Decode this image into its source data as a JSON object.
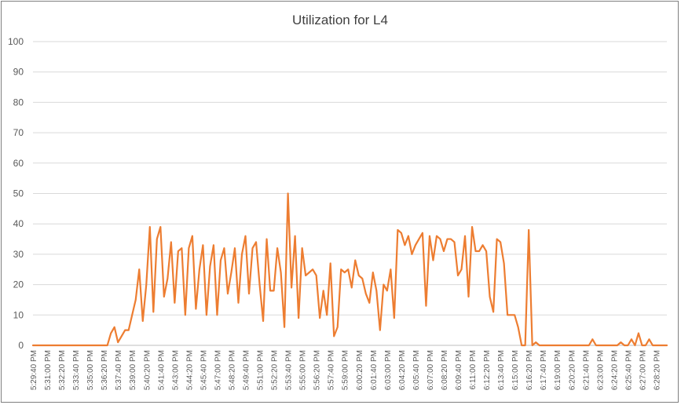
{
  "chart_data": {
    "type": "line",
    "title": "Utilization for L4",
    "xlabel": "",
    "ylabel": "",
    "ylim": [
      0,
      100
    ],
    "yticks": [
      0,
      10,
      20,
      30,
      40,
      50,
      60,
      70,
      80,
      90,
      100
    ],
    "grid": true,
    "legend": "none",
    "colors": {
      "series": "#ED7D31",
      "grid": "#D9D9D9"
    },
    "x_tick_labels": [
      "5:29:40 PM",
      "5:31:00 PM",
      "5:32:20 PM",
      "5:33:40 PM",
      "5:35:00 PM",
      "5:36:20 PM",
      "5:37:40 PM",
      "5:39:00 PM",
      "5:40:20 PM",
      "5:41:40 PM",
      "5:43:00 PM",
      "5:44:20 PM",
      "5:45:40 PM",
      "5:47:00 PM",
      "5:48:20 PM",
      "5:49:40 PM",
      "5:51:00 PM",
      "5:52:20 PM",
      "5:53:40 PM",
      "5:55:00 PM",
      "5:56:20 PM",
      "5:57:40 PM",
      "5:59:00 PM",
      "6:00:20 PM",
      "6:01:40 PM",
      "6:03:00 PM",
      "6:04:20 PM",
      "6:05:40 PM",
      "6:07:00 PM",
      "6:08:20 PM",
      "6:09:40 PM",
      "6:11:00 PM",
      "6:12:20 PM",
      "6:13:40 PM",
      "6:15:00 PM",
      "6:16:20 PM",
      "6:17:40 PM",
      "6:19:00 PM",
      "6:20:20 PM",
      "6:21:40 PM",
      "6:23:00 PM",
      "6:24:20 PM",
      "6:25:40 PM",
      "6:27:00 PM",
      "6:28:20 PM"
    ],
    "points_per_tick": 4,
    "series": [
      {
        "values": [
          0,
          0,
          0,
          0,
          0,
          0,
          0,
          0,
          0,
          0,
          0,
          0,
          0,
          0,
          0,
          0,
          0,
          0,
          0,
          0,
          0,
          0,
          4,
          6,
          1,
          3,
          5,
          5,
          10,
          15,
          25,
          8,
          20,
          39,
          11,
          35,
          39,
          16,
          22,
          34,
          14,
          31,
          32,
          10,
          32,
          36,
          12,
          25,
          33,
          10,
          26,
          33,
          10,
          28,
          32,
          17,
          24,
          32,
          14,
          30,
          36,
          17,
          32,
          34,
          20,
          8,
          35,
          18,
          18,
          32,
          24,
          6,
          50,
          19,
          36,
          9,
          32,
          23,
          24,
          25,
          23,
          9,
          18,
          10,
          27,
          3,
          6,
          25,
          24,
          25,
          19,
          28,
          23,
          22,
          17,
          14,
          24,
          18,
          5,
          20,
          18,
          25,
          9,
          38,
          37,
          33,
          36,
          30,
          33,
          35,
          37,
          13,
          36,
          28,
          36,
          35,
          31,
          35,
          35,
          34,
          23,
          25,
          36,
          16,
          39,
          31,
          31,
          33,
          31,
          16,
          11,
          35,
          34,
          27,
          10,
          10,
          10,
          6,
          0,
          0,
          38,
          0,
          1,
          0,
          0,
          0,
          0,
          0,
          0,
          0,
          0,
          0,
          0,
          0,
          0,
          0,
          0,
          0,
          2,
          0,
          0,
          0,
          0,
          0,
          0,
          0,
          1,
          0,
          0,
          2,
          0,
          4,
          0,
          0,
          2,
          0,
          0,
          0,
          0,
          0
        ]
      }
    ]
  }
}
